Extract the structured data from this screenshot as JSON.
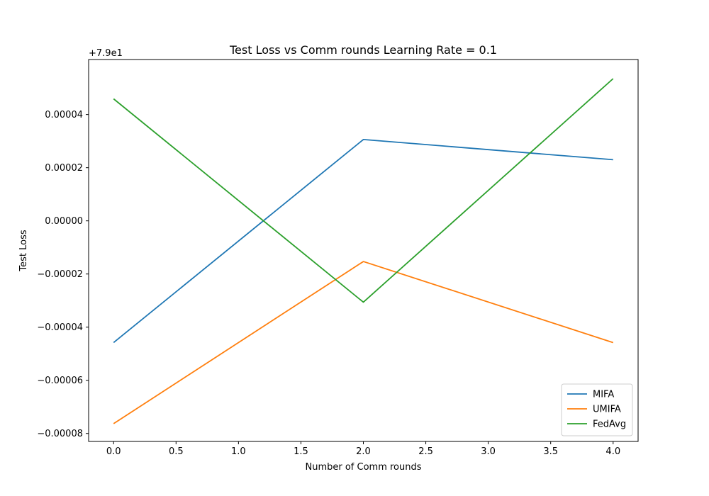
{
  "chart_data": {
    "type": "line",
    "title": "Test Loss vs Comm rounds Learning Rate = 0.1",
    "xlabel": "Number of Comm rounds",
    "ylabel": "Test Loss",
    "offset_label": "+7.9e1",
    "xlim": [
      -0.2,
      4.2
    ],
    "ylim": [
      -8.3e-05,
      6.07e-05
    ],
    "x_ticks": [
      0.0,
      0.5,
      1.0,
      1.5,
      2.0,
      2.5,
      3.0,
      3.5,
      4.0
    ],
    "x_tick_labels": [
      "0.0",
      "0.5",
      "1.0",
      "1.5",
      "2.0",
      "2.5",
      "3.0",
      "3.5",
      "4.0"
    ],
    "y_ticks": [
      -8e-05,
      -6e-05,
      -4e-05,
      -2e-05,
      0.0,
      2e-05,
      4e-05
    ],
    "y_tick_labels": [
      "−0.00008",
      "−0.00006",
      "−0.00004",
      "−0.00002",
      "0.00000",
      "0.00002",
      "0.00004"
    ],
    "x": [
      0,
      2,
      4
    ],
    "series": [
      {
        "name": "MIFA",
        "color": "#1f77b4",
        "values": [
          -4.58e-05,
          3.06e-05,
          2.3e-05
        ]
      },
      {
        "name": "UMIFA",
        "color": "#ff7f0e",
        "values": [
          -7.63e-05,
          -1.53e-05,
          -4.58e-05
        ]
      },
      {
        "name": "FedAvg",
        "color": "#2ca02c",
        "values": [
          4.59e-05,
          -3.06e-05,
          5.35e-05
        ]
      }
    ],
    "legend_position": "bottom-right",
    "grid": false
  }
}
